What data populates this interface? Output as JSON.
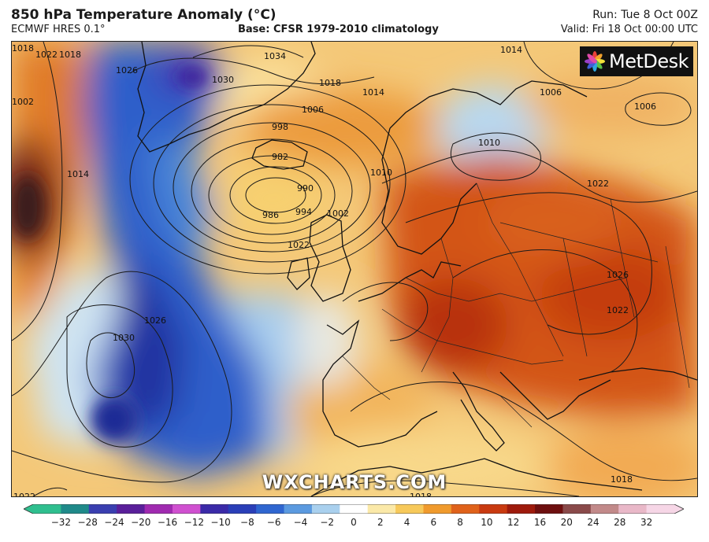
{
  "header": {
    "title": "850 hPa Temperature Anomaly (°C)",
    "model": "ECMWF HRES 0.1°",
    "base": "Base: CFSR 1979-2010 climatology",
    "run": "Run: Tue 8 Oct 00Z",
    "valid": "Valid: Fri 18 Oct 00:00 UTC"
  },
  "logo": {
    "text": "MetDesk"
  },
  "watermark": "WXCHARTS.COM",
  "colorbar": {
    "ticks": [
      "−32",
      "−28",
      "−24",
      "−20",
      "−16",
      "−12",
      "−10",
      "−8",
      "−6",
      "−4",
      "−2",
      "0",
      "2",
      "4",
      "6",
      "8",
      "10",
      "12",
      "16",
      "20",
      "24",
      "28",
      "32"
    ],
    "colors": [
      "#2fbf8f",
      "#1f8a8a",
      "#3a3fb0",
      "#5a1f9a",
      "#a02ab0",
      "#d050d0",
      "#3b2aa8",
      "#2a3fb8",
      "#2f66d0",
      "#5b9ae0",
      "#a9d0ee",
      "#ffffff",
      "#fbe9a8",
      "#f7c95a",
      "#f09a2c",
      "#e0621a",
      "#c93a10",
      "#9e1a0c",
      "#6e0f0f",
      "#8a4a4a",
      "#c28a8a",
      "#e9b8c8",
      "#f6d6e6"
    ]
  },
  "isobars": [
    {
      "label": "1034"
    },
    {
      "label": "1030"
    },
    {
      "label": "1026"
    },
    {
      "label": "1018"
    },
    {
      "label": "1014"
    },
    {
      "label": "1006"
    },
    {
      "label": "998"
    },
    {
      "label": "982"
    },
    {
      "label": "990"
    },
    {
      "label": "986"
    },
    {
      "label": "994"
    },
    {
      "label": "1002"
    },
    {
      "label": "1010"
    },
    {
      "label": "1006"
    },
    {
      "label": "1006"
    },
    {
      "label": "1014"
    },
    {
      "label": "1010"
    },
    {
      "label": "1022"
    },
    {
      "label": "1030"
    },
    {
      "label": "1026"
    },
    {
      "label": "1018"
    },
    {
      "label": "1022"
    },
    {
      "label": "1026"
    },
    {
      "label": "1022"
    },
    {
      "label": "1002"
    },
    {
      "label": "1018"
    },
    {
      "label": "1014"
    },
    {
      "label": "1022"
    },
    {
      "label": "1022"
    },
    {
      "label": "1018"
    },
    {
      "label": "1018"
    }
  ]
}
